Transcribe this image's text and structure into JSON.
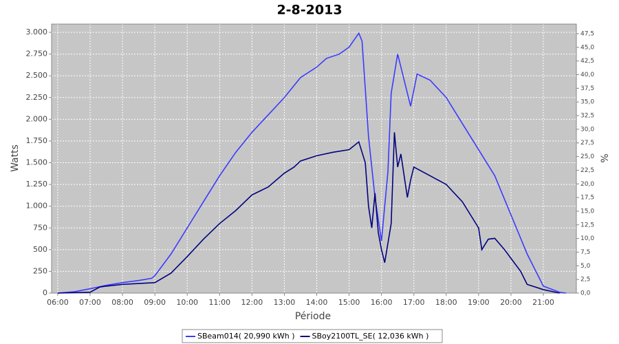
{
  "chart_data": {
    "type": "line",
    "title": "2-8-2013",
    "xlabel": "Période",
    "ylabel": "Watts",
    "y2label": "%",
    "xlim": [
      5.81,
      22.02
    ],
    "xticks": [
      {
        "value": 6,
        "label": "06:00"
      },
      {
        "value": 7,
        "label": "07:00"
      },
      {
        "value": 8,
        "label": "08:00"
      },
      {
        "value": 9,
        "label": "09:00"
      },
      {
        "value": 10,
        "label": "10:00"
      },
      {
        "value": 11,
        "label": "11:00"
      },
      {
        "value": 12,
        "label": "12:00"
      },
      {
        "value": 13,
        "label": "13:00"
      },
      {
        "value": 14,
        "label": "14:00"
      },
      {
        "value": 15,
        "label": "15:00"
      },
      {
        "value": 16,
        "label": "16:00"
      },
      {
        "value": 17,
        "label": "17:00"
      },
      {
        "value": 18,
        "label": "18:00"
      },
      {
        "value": 19,
        "label": "19:00"
      },
      {
        "value": 20,
        "label": "20:00"
      },
      {
        "value": 21,
        "label": "21:00"
      }
    ],
    "ylim": [
      0,
      3095
    ],
    "yticks": [
      0,
      250,
      500,
      750,
      {
        "value": 1000,
        "label": "1.000"
      },
      {
        "value": 1250,
        "label": "1.250"
      },
      {
        "value": 1500,
        "label": "1.500"
      },
      {
        "value": 1750,
        "label": "1.750"
      },
      {
        "value": 2000,
        "label": "2.000"
      },
      {
        "value": 2250,
        "label": "2.250"
      },
      {
        "value": 2500,
        "label": "2.500"
      },
      {
        "value": 2750,
        "label": "2.750"
      },
      {
        "value": 3000,
        "label": "3.000"
      }
    ],
    "y2lim": [
      0,
      49.26
    ],
    "y2ticks": [
      {
        "value": 0,
        "label": "0,0"
      },
      {
        "value": 2.5,
        "label": "2,5"
      },
      {
        "value": 5,
        "label": "5,0"
      },
      {
        "value": 7.5,
        "label": "7,5"
      },
      {
        "value": 10,
        "label": "10,0"
      },
      {
        "value": 12.5,
        "label": "12,5"
      },
      {
        "value": 15,
        "label": "15,0"
      },
      {
        "value": 17.5,
        "label": "17,5"
      },
      {
        "value": 20,
        "label": "20,0"
      },
      {
        "value": 22.5,
        "label": "22,5"
      },
      {
        "value": 25,
        "label": "25,0"
      },
      {
        "value": 27.5,
        "label": "27,5"
      },
      {
        "value": 30,
        "label": "30,0"
      },
      {
        "value": 32.5,
        "label": "32,5"
      },
      {
        "value": 35,
        "label": "35,0"
      },
      {
        "value": 37.5,
        "label": "37,5"
      },
      {
        "value": 40,
        "label": "40,0"
      },
      {
        "value": 42.5,
        "label": "42,5"
      },
      {
        "value": 45,
        "label": "45,0"
      },
      {
        "value": 47.5,
        "label": "47,5"
      }
    ],
    "grid": true,
    "legend": "bottom",
    "series": [
      {
        "name": "SBeam014( 20,990 kWh )",
        "color": "#3a3aff",
        "x": [
          6.0,
          6.5,
          7.0,
          7.5,
          8.0,
          8.5,
          8.9,
          9.0,
          9.5,
          10.0,
          10.5,
          11.0,
          11.5,
          12.0,
          12.5,
          13.0,
          13.5,
          14.0,
          14.3,
          14.7,
          15.0,
          15.3,
          15.4,
          15.6,
          15.8,
          16.0,
          16.2,
          16.3,
          16.5,
          16.7,
          16.9,
          17.1,
          17.5,
          18.0,
          18.5,
          19.0,
          19.5,
          20.0,
          20.5,
          21.0,
          21.5,
          21.7
        ],
        "values": [
          0,
          15,
          50,
          90,
          120,
          145,
          170,
          200,
          450,
          750,
          1050,
          1350,
          1620,
          1850,
          2050,
          2250,
          2480,
          2600,
          2700,
          2750,
          2830,
          2990,
          2900,
          1800,
          1100,
          600,
          1400,
          2300,
          2750,
          2450,
          2150,
          2520,
          2450,
          2250,
          1950,
          1650,
          1350,
          900,
          450,
          80,
          10,
          0
        ]
      },
      {
        "name": "SBoy2100TL_SE( 12,036 kWh )",
        "color": "#000080",
        "x": [
          6.0,
          7.0,
          7.3,
          7.5,
          8.0,
          8.5,
          9.0,
          9.5,
          10.0,
          10.5,
          11.0,
          11.5,
          12.0,
          12.5,
          13.0,
          13.3,
          13.5,
          14.0,
          14.5,
          15.0,
          15.3,
          15.5,
          15.6,
          15.7,
          15.8,
          15.9,
          16.0,
          16.1,
          16.3,
          16.4,
          16.5,
          16.6,
          16.8,
          16.9,
          17.0,
          17.5,
          18.0,
          18.5,
          19.0,
          19.1,
          19.3,
          19.5,
          19.8,
          20.0,
          20.3,
          20.5,
          21.0,
          21.5
        ],
        "values": [
          0,
          10,
          70,
          80,
          100,
          110,
          120,
          230,
          420,
          620,
          800,
          950,
          1130,
          1220,
          1380,
          1450,
          1520,
          1580,
          1620,
          1650,
          1740,
          1500,
          1000,
          750,
          1150,
          700,
          500,
          350,
          800,
          1850,
          1450,
          1600,
          1100,
          1300,
          1450,
          1350,
          1250,
          1050,
          750,
          500,
          620,
          630,
          500,
          400,
          250,
          100,
          40,
          0
        ]
      }
    ]
  }
}
